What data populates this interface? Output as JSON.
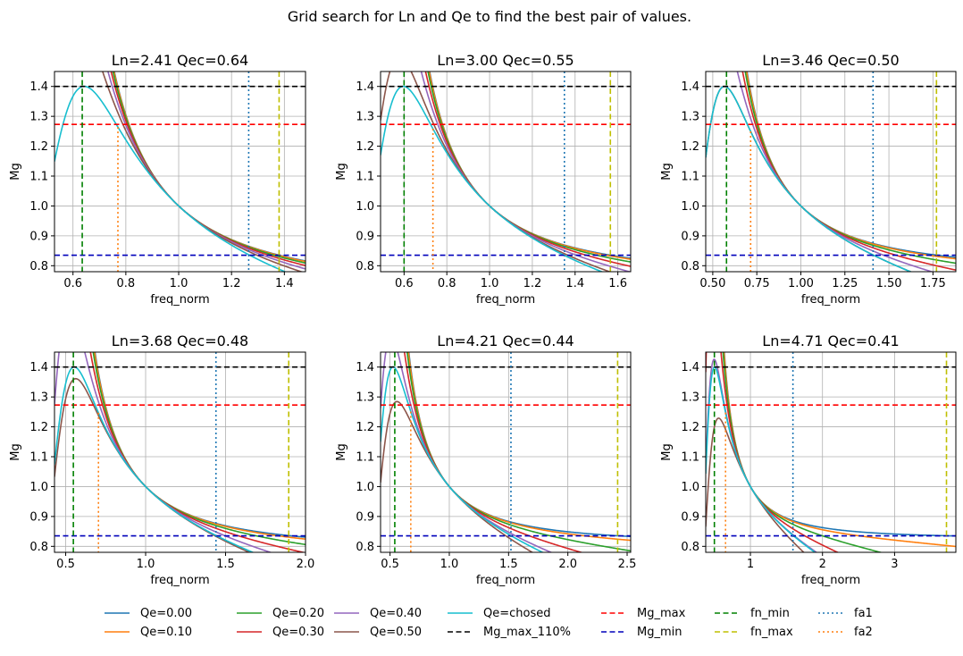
{
  "suptitle": "Grid search for Ln and Qe to find the best pair of values.",
  "colors": {
    "qe_0": "#1f77b4",
    "qe_1": "#ff7f0e",
    "qe_2": "#2ca02c",
    "qe_3": "#d62728",
    "qe_4": "#9467bd",
    "qe_5": "#8c564b",
    "chosen": "#17becf",
    "mg_max_110": "#000000",
    "mg_max": "#ff0000",
    "mg_min": "#0000bb",
    "fn_min": "#008000",
    "fn_max": "#bfbf00",
    "fa1": "#1f77b4",
    "fa2": "#ff7f0e",
    "grid": "#b0b0b0"
  },
  "legend": {
    "placement": "bottom-center",
    "entries": [
      {
        "label": "Qe=0.00",
        "style": "solid",
        "color": "#1f77b4"
      },
      {
        "label": "Qe=0.10",
        "style": "solid",
        "color": "#ff7f0e"
      },
      {
        "label": "Qe=0.20",
        "style": "solid",
        "color": "#2ca02c"
      },
      {
        "label": "Qe=0.30",
        "style": "solid",
        "color": "#d62728"
      },
      {
        "label": "Qe=0.40",
        "style": "solid",
        "color": "#9467bd"
      },
      {
        "label": "Qe=0.50",
        "style": "solid",
        "color": "#8c564b"
      },
      {
        "label": "Qe=chosed",
        "style": "solid",
        "color": "#17becf"
      },
      {
        "label": "Mg_max_110%",
        "style": "dashed",
        "color": "#000000"
      },
      {
        "label": "Mg_max",
        "style": "dashed",
        "color": "#ff0000"
      },
      {
        "label": "Mg_min",
        "style": "dashed",
        "color": "#0000bb"
      },
      {
        "label": "fn_min",
        "style": "dashed",
        "color": "#008000"
      },
      {
        "label": "fn_max",
        "style": "dashed",
        "color": "#bfbf00"
      },
      {
        "label": "fa1",
        "style": "dotted",
        "color": "#1f77b4"
      },
      {
        "label": "fa2",
        "style": "dotted",
        "color": "#ff7f0e"
      }
    ]
  },
  "chart_data": [
    {
      "type": "line",
      "title": "Ln=2.41 Qec=0.64",
      "xlabel": "freq_norm",
      "ylabel": "Mg",
      "xlim": [
        0.53,
        1.48
      ],
      "ylim": [
        0.78,
        1.45
      ],
      "grid": true,
      "xticks": [
        0.6,
        0.8,
        1.0,
        1.2,
        1.4
      ],
      "xtick_labels": [
        "0.6",
        "0.8",
        "1.0",
        "1.2",
        "1.4"
      ],
      "yticks": [
        0.8,
        0.9,
        1.0,
        1.1,
        1.2,
        1.3,
        1.4
      ],
      "ytick_labels": [
        "0.8",
        "0.9",
        "1.0",
        "1.1",
        "1.2",
        "1.3",
        "1.4"
      ],
      "Ln": 2.41,
      "Qec": 0.64,
      "hlines": {
        "Mg_max_110%": 1.4,
        "Mg_max": 1.273,
        "Mg_min": 0.835
      },
      "vlines": {
        "fn_min": 0.635,
        "fn_max": 1.38,
        "fa1": 1.265,
        "fa2": 0.77
      }
    },
    {
      "type": "line",
      "title": "Ln=3.00 Qec=0.55",
      "xlabel": "freq_norm",
      "ylabel": "Mg",
      "xlim": [
        0.49,
        1.66
      ],
      "ylim": [
        0.78,
        1.45
      ],
      "grid": true,
      "xticks": [
        0.6,
        0.8,
        1.0,
        1.2,
        1.4,
        1.6
      ],
      "xtick_labels": [
        "0.6",
        "0.8",
        "1.0",
        "1.2",
        "1.4",
        "1.6"
      ],
      "yticks": [
        0.8,
        0.9,
        1.0,
        1.1,
        1.2,
        1.3,
        1.4
      ],
      "ytick_labels": [
        "0.8",
        "0.9",
        "1.0",
        "1.1",
        "1.2",
        "1.3",
        "1.4"
      ],
      "Ln": 3.0,
      "Qec": 0.55,
      "hlines": {
        "Mg_max_110%": 1.4,
        "Mg_max": 1.273,
        "Mg_min": 0.835
      },
      "vlines": {
        "fn_min": 0.6,
        "fn_max": 1.565,
        "fa1": 1.35,
        "fa2": 0.735
      }
    },
    {
      "type": "line",
      "title": "Ln=3.46 Qec=0.50",
      "xlabel": "freq_norm",
      "ylabel": "Mg",
      "xlim": [
        0.46,
        1.88
      ],
      "ylim": [
        0.78,
        1.45
      ],
      "grid": true,
      "xticks": [
        0.5,
        0.75,
        1.0,
        1.25,
        1.5,
        1.75
      ],
      "xtick_labels": [
        "0.50",
        "0.75",
        "1.00",
        "1.25",
        "1.50",
        "1.75"
      ],
      "yticks": [
        0.8,
        0.9,
        1.0,
        1.1,
        1.2,
        1.3,
        1.4
      ],
      "ytick_labels": [
        "0.8",
        "0.9",
        "1.0",
        "1.1",
        "1.2",
        "1.3",
        "1.4"
      ],
      "Ln": 3.46,
      "Qec": 0.5,
      "hlines": {
        "Mg_max_110%": 1.4,
        "Mg_max": 1.273,
        "Mg_min": 0.835
      },
      "vlines": {
        "fn_min": 0.578,
        "fn_max": 1.77,
        "fa1": 1.41,
        "fa2": 0.715
      }
    },
    {
      "type": "line",
      "title": "Ln=3.68 Qec=0.48",
      "xlabel": "freq_norm",
      "ylabel": "Mg",
      "xlim": [
        0.43,
        2.0
      ],
      "ylim": [
        0.78,
        1.45
      ],
      "grid": true,
      "xticks": [
        0.5,
        1.0,
        1.5,
        2.0
      ],
      "xtick_labels": [
        "0.5",
        "1.0",
        "1.5",
        "2.0"
      ],
      "yticks": [
        0.8,
        0.9,
        1.0,
        1.1,
        1.2,
        1.3,
        1.4
      ],
      "ytick_labels": [
        "0.8",
        "0.9",
        "1.0",
        "1.1",
        "1.2",
        "1.3",
        "1.4"
      ],
      "Ln": 3.68,
      "Qec": 0.48,
      "hlines": {
        "Mg_max_110%": 1.4,
        "Mg_max": 1.273,
        "Mg_min": 0.835
      },
      "vlines": {
        "fn_min": 0.548,
        "fn_max": 1.895,
        "fa1": 1.44,
        "fa2": 0.705
      }
    },
    {
      "type": "line",
      "title": "Ln=4.21 Qec=0.44",
      "xlabel": "freq_norm",
      "ylabel": "Mg",
      "xlim": [
        0.42,
        2.53
      ],
      "ylim": [
        0.78,
        1.45
      ],
      "grid": true,
      "xticks": [
        0.5,
        1.0,
        1.5,
        2.0,
        2.5
      ],
      "xtick_labels": [
        "0.5",
        "1.0",
        "1.5",
        "2.0",
        "2.5"
      ],
      "yticks": [
        0.8,
        0.9,
        1.0,
        1.1,
        1.2,
        1.3,
        1.4
      ],
      "ytick_labels": [
        "0.8",
        "0.9",
        "1.0",
        "1.1",
        "1.2",
        "1.3",
        "1.4"
      ],
      "Ln": 4.21,
      "Qec": 0.44,
      "hlines": {
        "Mg_max_110%": 1.4,
        "Mg_max": 1.273,
        "Mg_min": 0.835
      },
      "vlines": {
        "fn_min": 0.54,
        "fn_max": 2.42,
        "fa1": 1.52,
        "fa2": 0.675
      }
    },
    {
      "type": "line",
      "title": "Ln=4.71 Qec=0.41",
      "xlabel": "freq_norm",
      "ylabel": "Mg",
      "xlim": [
        0.38,
        3.85
      ],
      "ylim": [
        0.78,
        1.45
      ],
      "grid": true,
      "xticks": [
        1,
        2,
        3
      ],
      "xtick_labels": [
        "1",
        "2",
        "3"
      ],
      "yticks": [
        0.8,
        0.9,
        1.0,
        1.1,
        1.2,
        1.3,
        1.4
      ],
      "ytick_labels": [
        "0.8",
        "0.9",
        "1.0",
        "1.1",
        "1.2",
        "1.3",
        "1.4"
      ],
      "Ln": 4.71,
      "Qec": 0.41,
      "hlines": {
        "Mg_max_110%": 1.4,
        "Mg_max": 1.273,
        "Mg_min": 0.835
      },
      "vlines": {
        "fn_min": 0.5,
        "fn_max": 3.72,
        "fa1": 1.59,
        "fa2": 0.655
      }
    }
  ]
}
